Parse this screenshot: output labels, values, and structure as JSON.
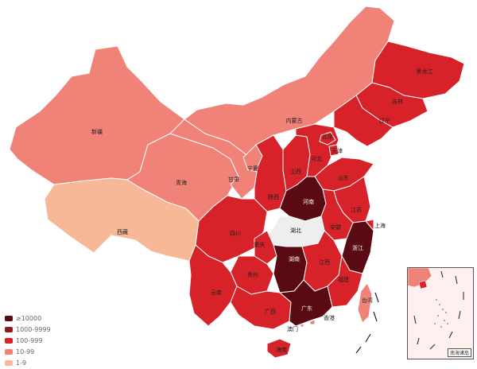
{
  "colors": {
    "gte10000": "#5a0a12",
    "r1000": "#8c1c1f",
    "r100": "#d7222a",
    "r10": "#f08277",
    "r1": "#f6b897",
    "none": "#eeeeee"
  },
  "legend": [
    {
      "label": "≥10000",
      "color": "#5a0a12"
    },
    {
      "label": "1000-9999",
      "color": "#8c1c1f"
    },
    {
      "label": "100-999",
      "color": "#d7222a"
    },
    {
      "label": "10-99",
      "color": "#f08277"
    },
    {
      "label": "1-9",
      "color": "#f6b897"
    }
  ],
  "provinces": {
    "heilongjiang": "黑龙江",
    "jilin": "吉林",
    "liaoning": "辽宁",
    "neimenggu": "内蒙古",
    "xinjiang": "新疆",
    "xizang": "西藏",
    "qinghai": "青海",
    "gansu": "甘肃",
    "ningxia": "宁夏",
    "shaanxi": "陕西",
    "shanxi": "山西",
    "hebei": "河北",
    "beijing": "北京",
    "tianjin": "天津",
    "shandong": "山东",
    "henan": "河南",
    "jiangsu": "江苏",
    "anhui": "安徽",
    "hubei": "湖北",
    "sichuan": "四川",
    "chongqing": "重庆",
    "guizhou": "贵州",
    "yunnan": "云南",
    "hunan": "湖南",
    "jiangxi": "江西",
    "zhejiang": "浙江",
    "fujian": "福建",
    "guangxi": "广西",
    "guangdong": "广东",
    "hainan": "海南",
    "taiwan": "台湾",
    "xianggang": "香港",
    "aomen": "澳门",
    "shanghai": "上海"
  },
  "inset": {
    "label": "南海诸岛"
  }
}
